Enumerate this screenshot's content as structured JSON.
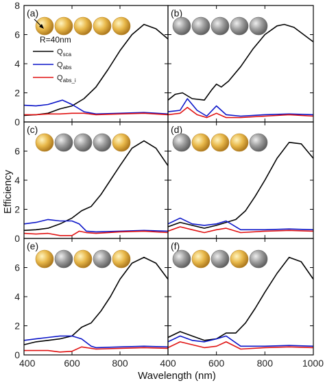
{
  "chart_data": {
    "type": "line",
    "ylabel": "Efficiency",
    "xlabel": "Wavelength (nm)",
    "xlim": [
      400,
      1000
    ],
    "ylim": [
      0,
      8
    ],
    "xticks": [
      "400",
      "600",
      "800",
      "400",
      "600",
      "800",
      "1000"
    ],
    "yticks": [
      "0",
      "2",
      "4",
      "6",
      "8"
    ],
    "legend": {
      "placement": "upper-left of panel (a)",
      "entries": [
        {
          "main": "Q",
          "sub": "sca",
          "color": "#000000"
        },
        {
          "main": "Q",
          "sub": "abs",
          "color": "#0a14c8"
        },
        {
          "main": "Q",
          "sub": "abs_i",
          "color": "#e01010"
        }
      ]
    },
    "annotation": "R=40nm",
    "colors": {
      "gold": "#e8b84a",
      "silver": "#9c9c9c"
    },
    "panels": [
      {
        "label": "(a)",
        "spheres": [
          "gold",
          "gold",
          "gold",
          "gold",
          "gold"
        ],
        "series": [
          {
            "color": "#000000",
            "x": [
              400,
              450,
              500,
              550,
              600,
              650,
              700,
              750,
              800,
              850,
              900,
              950,
              1000
            ],
            "y": [
              0.45,
              0.5,
              0.6,
              0.9,
              1.1,
              1.6,
              2.4,
              3.6,
              4.9,
              6.0,
              6.7,
              6.4,
              5.7
            ]
          },
          {
            "color": "#0a14c8",
            "x": [
              400,
              450,
              500,
              550,
              560,
              600,
              650,
              700,
              800,
              900,
              1000
            ],
            "y": [
              1.15,
              1.1,
              1.2,
              1.45,
              1.5,
              1.2,
              0.7,
              0.55,
              0.6,
              0.65,
              0.55
            ]
          },
          {
            "color": "#e01010",
            "x": [
              400,
              450,
              500,
              550,
              600,
              650,
              700,
              800,
              900,
              1000
            ],
            "y": [
              0.5,
              0.5,
              0.55,
              0.55,
              0.6,
              0.6,
              0.5,
              0.55,
              0.6,
              0.5
            ]
          }
        ]
      },
      {
        "label": "(b)",
        "spheres": [
          "silver",
          "silver",
          "silver",
          "silver",
          "silver"
        ],
        "series": [
          {
            "color": "#000000",
            "x": [
              400,
              430,
              460,
              500,
              550,
              580,
              600,
              620,
              650,
              700,
              750,
              800,
              850,
              880,
              920,
              1000
            ],
            "y": [
              1.5,
              1.9,
              2.0,
              1.6,
              1.5,
              2.2,
              2.6,
              2.4,
              2.8,
              3.8,
              5.0,
              6.0,
              6.6,
              6.7,
              6.5,
              5.5
            ]
          },
          {
            "color": "#0a14c8",
            "x": [
              400,
              450,
              480,
              520,
              560,
              600,
              640,
              700,
              800,
              900,
              1000
            ],
            "y": [
              0.7,
              0.8,
              1.6,
              0.8,
              0.4,
              1.1,
              0.5,
              0.4,
              0.5,
              0.55,
              0.5
            ]
          },
          {
            "color": "#e01010",
            "x": [
              400,
              450,
              480,
              520,
              560,
              600,
              640,
              700,
              800,
              900,
              1000
            ],
            "y": [
              0.5,
              0.6,
              1.0,
              0.5,
              0.3,
              0.6,
              0.3,
              0.3,
              0.4,
              0.5,
              0.4
            ]
          }
        ]
      },
      {
        "label": "(c)",
        "spheres": [
          "gold",
          "silver",
          "silver",
          "silver",
          "gold"
        ],
        "series": [
          {
            "color": "#000000",
            "x": [
              400,
              450,
              500,
              550,
              600,
              640,
              680,
              720,
              760,
              800,
              850,
              900,
              950,
              1000
            ],
            "y": [
              0.55,
              0.6,
              0.7,
              1.0,
              1.4,
              1.9,
              2.2,
              3.0,
              4.0,
              5.0,
              6.2,
              6.7,
              6.2,
              5.0
            ]
          },
          {
            "color": "#0a14c8",
            "x": [
              400,
              450,
              500,
              550,
              600,
              630,
              660,
              700,
              800,
              900,
              1000
            ],
            "y": [
              1.0,
              1.1,
              1.3,
              1.2,
              1.2,
              1.0,
              0.5,
              0.45,
              0.5,
              0.55,
              0.5
            ]
          },
          {
            "color": "#e01010",
            "x": [
              400,
              450,
              500,
              550,
              600,
              630,
              660,
              700,
              800,
              900,
              1000
            ],
            "y": [
              0.35,
              0.3,
              0.35,
              0.2,
              0.2,
              0.5,
              0.4,
              0.35,
              0.45,
              0.5,
              0.4
            ]
          }
        ]
      },
      {
        "label": "(d)",
        "spheres": [
          "silver",
          "gold",
          "gold",
          "gold",
          "silver"
        ],
        "series": [
          {
            "color": "#000000",
            "x": [
              400,
              450,
              500,
              550,
              600,
              640,
              680,
              720,
              760,
              800,
              850,
              900,
              950,
              1000
            ],
            "y": [
              0.8,
              1.1,
              0.9,
              0.7,
              0.9,
              1.1,
              1.3,
              1.9,
              2.9,
              4.0,
              5.5,
              6.6,
              6.5,
              5.5
            ]
          },
          {
            "color": "#0a14c8",
            "x": [
              400,
              450,
              500,
              550,
              600,
              640,
              700,
              800,
              900,
              1000
            ],
            "y": [
              1.0,
              1.4,
              1.0,
              0.9,
              1.0,
              1.2,
              0.6,
              0.6,
              0.65,
              0.6
            ]
          },
          {
            "color": "#e01010",
            "x": [
              400,
              450,
              500,
              550,
              600,
              640,
              700,
              800,
              900,
              1000
            ],
            "y": [
              0.5,
              0.8,
              0.6,
              0.4,
              0.6,
              0.7,
              0.4,
              0.5,
              0.55,
              0.5
            ]
          }
        ]
      },
      {
        "label": "(e)",
        "spheres": [
          "gold",
          "silver",
          "gold",
          "silver",
          "gold"
        ],
        "series": [
          {
            "color": "#000000",
            "x": [
              400,
              450,
              500,
              550,
              600,
              640,
              680,
              720,
              760,
              800,
              850,
              900,
              950,
              1000
            ],
            "y": [
              0.7,
              0.9,
              1.0,
              1.1,
              1.3,
              1.9,
              2.2,
              3.0,
              4.0,
              5.2,
              6.3,
              6.7,
              6.3,
              5.2
            ]
          },
          {
            "color": "#0a14c8",
            "x": [
              400,
              450,
              500,
              550,
              600,
              640,
              680,
              700,
              800,
              900,
              1000
            ],
            "y": [
              1.0,
              1.1,
              1.2,
              1.3,
              1.3,
              1.1,
              0.6,
              0.5,
              0.55,
              0.6,
              0.55
            ]
          },
          {
            "color": "#e01010",
            "x": [
              400,
              450,
              500,
              550,
              600,
              640,
              680,
              700,
              800,
              900,
              1000
            ],
            "y": [
              0.3,
              0.3,
              0.3,
              0.2,
              0.25,
              0.55,
              0.45,
              0.4,
              0.45,
              0.5,
              0.45
            ]
          }
        ]
      },
      {
        "label": "(f)",
        "spheres": [
          "silver",
          "gold",
          "silver",
          "gold",
          "silver"
        ],
        "series": [
          {
            "color": "#000000",
            "x": [
              400,
              450,
              500,
              550,
              600,
              640,
              680,
              720,
              760,
              800,
              850,
              900,
              950,
              1000
            ],
            "y": [
              1.2,
              1.6,
              1.3,
              1.0,
              1.1,
              1.5,
              1.5,
              2.2,
              3.2,
              4.3,
              5.6,
              6.7,
              6.4,
              5.2
            ]
          },
          {
            "color": "#0a14c8",
            "x": [
              400,
              450,
              500,
              550,
              600,
              640,
              700,
              800,
              900,
              1000
            ],
            "y": [
              0.9,
              1.3,
              1.0,
              0.9,
              1.1,
              1.3,
              0.6,
              0.6,
              0.65,
              0.6
            ]
          },
          {
            "color": "#e01010",
            "x": [
              400,
              450,
              500,
              550,
              600,
              640,
              700,
              800,
              900,
              1000
            ],
            "y": [
              0.5,
              0.9,
              0.7,
              0.5,
              0.6,
              0.9,
              0.4,
              0.5,
              0.55,
              0.5
            ]
          }
        ]
      }
    ]
  }
}
